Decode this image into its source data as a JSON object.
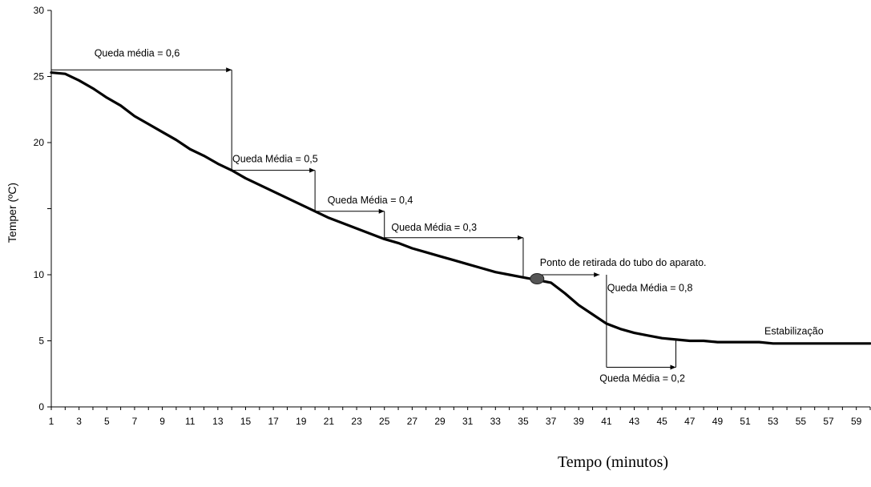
{
  "chart_data": {
    "type": "line",
    "title": "",
    "xlabel": "Tempo (minutos)",
    "ylabel": "Temper  (ºC)",
    "xlim": [
      1,
      60
    ],
    "ylim": [
      0,
      30
    ],
    "y_tick_labels": [
      "0",
      "5",
      "10",
      "20",
      "25",
      "30"
    ],
    "x_tick_labels": [
      "1",
      "3",
      "5",
      "7",
      "9",
      "11",
      "13",
      "15",
      "17",
      "19",
      "21",
      "23",
      "25",
      "27",
      "29",
      "31",
      "33",
      "35",
      "37",
      "39",
      "41",
      "43",
      "45",
      "47",
      "49",
      "51",
      "53",
      "55",
      "57",
      "59"
    ],
    "grid": false,
    "legend": "none",
    "series": [
      {
        "x": [
          1,
          2,
          3,
          4,
          5,
          6,
          7,
          8,
          9,
          10,
          11,
          12,
          13,
          14,
          15,
          16,
          17,
          18,
          19,
          20,
          21,
          22,
          23,
          24,
          25,
          26,
          27,
          28,
          29,
          30,
          31,
          32,
          33,
          34,
          35,
          36,
          37,
          38,
          39,
          40,
          41,
          42,
          43,
          44,
          45,
          46,
          47,
          48,
          49,
          50,
          51,
          52,
          53,
          54,
          55,
          56,
          57,
          58,
          59,
          60
        ],
        "y": [
          25.3,
          25.2,
          24.7,
          24.1,
          23.4,
          22.8,
          22.0,
          21.4,
          20.8,
          20.2,
          19.5,
          19.0,
          18.4,
          17.9,
          17.3,
          16.8,
          16.3,
          15.8,
          15.3,
          14.8,
          14.3,
          13.9,
          13.5,
          13.1,
          12.7,
          12.4,
          12.0,
          11.7,
          11.4,
          11.1,
          10.8,
          10.5,
          10.2,
          10.0,
          9.8,
          9.6,
          9.4,
          8.6,
          7.7,
          7.0,
          6.3,
          5.9,
          5.6,
          5.4,
          5.2,
          5.1,
          5.0,
          5.0,
          4.9,
          4.9,
          4.9,
          4.9,
          4.8,
          4.8,
          4.8,
          4.8,
          4.8,
          4.8,
          4.8,
          4.8
        ],
        "color": "#000000"
      }
    ],
    "marker_point": {
      "x": 36,
      "y": 9.7,
      "color": "#555555"
    },
    "annotations": [
      {
        "text": "Queda média = 0,6",
        "x_start": 1,
        "x_end": 14,
        "y": 25.5,
        "drop_to": 17.9
      },
      {
        "text": "Queda Média = 0,5",
        "x_start": 14,
        "x_end": 20,
        "y": 17.9,
        "drop_to": 14.8
      },
      {
        "text": "Queda Média = 0,4",
        "x_start": 20,
        "x_end": 25,
        "y": 14.8,
        "drop_to": 12.7
      },
      {
        "text": "Queda Média = 0,3",
        "x_start": 25,
        "x_end": 35,
        "y": 12.8,
        "drop_to": 9.8
      },
      {
        "text": "Ponto de retirada do tubo do aparato.",
        "x_start": 36,
        "x_end": 40.5,
        "y": 10.0
      },
      {
        "text": "Queda Média = 0,8",
        "x": 41,
        "y": 9.0,
        "drop_to": 3.0
      },
      {
        "text": "Queda Média = 0,2",
        "x_start": 41,
        "x_end": 46,
        "y": 3.0,
        "rise_to": 5.1
      },
      {
        "text": "Estabilização",
        "x": 56,
        "y": 5.5
      }
    ]
  }
}
